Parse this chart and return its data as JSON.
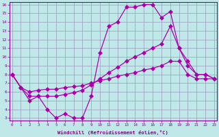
{
  "x": [
    0,
    1,
    2,
    3,
    4,
    5,
    6,
    7,
    8,
    9,
    10,
    11,
    12,
    13,
    14,
    15,
    16,
    17,
    18,
    19,
    20,
    21,
    22,
    23
  ],
  "line1": [
    8,
    6.5,
    5,
    5.5,
    4,
    3,
    3.5,
    3,
    3,
    5.5,
    10.5,
    13.5,
    14,
    15.7,
    15.7,
    16,
    16,
    14.5,
    15.2,
    11,
    9.5,
    8,
    8,
    7.5
  ],
  "line2": [
    8,
    6.5,
    5.5,
    5.5,
    5.5,
    5.5,
    5.7,
    5.9,
    6.2,
    6.8,
    7.5,
    8.2,
    8.8,
    9.5,
    10,
    10.5,
    11,
    11.5,
    13.5,
    11,
    9,
    8,
    8,
    7.5
  ],
  "line3": [
    8,
    6.5,
    6,
    6.2,
    6.3,
    6.3,
    6.5,
    6.6,
    6.7,
    7.0,
    7.3,
    7.5,
    7.8,
    8.0,
    8.2,
    8.5,
    8.7,
    9.0,
    9.5,
    9.5,
    8,
    7.5,
    7.5,
    7.5
  ],
  "bg_color": "#c0e8e8",
  "line_color": "#aa00aa",
  "grid_color": "#9999bb",
  "xlabel": "Windchill (Refroidissement éolien,°C)",
  "xlim": [
    0,
    23
  ],
  "ylim": [
    3,
    16
  ],
  "yticks": [
    3,
    4,
    5,
    6,
    7,
    8,
    9,
    10,
    11,
    12,
    13,
    14,
    15,
    16
  ],
  "xticks": [
    0,
    1,
    2,
    3,
    4,
    5,
    6,
    7,
    8,
    9,
    10,
    11,
    12,
    13,
    14,
    15,
    16,
    17,
    18,
    19,
    20,
    21,
    22,
    23
  ]
}
